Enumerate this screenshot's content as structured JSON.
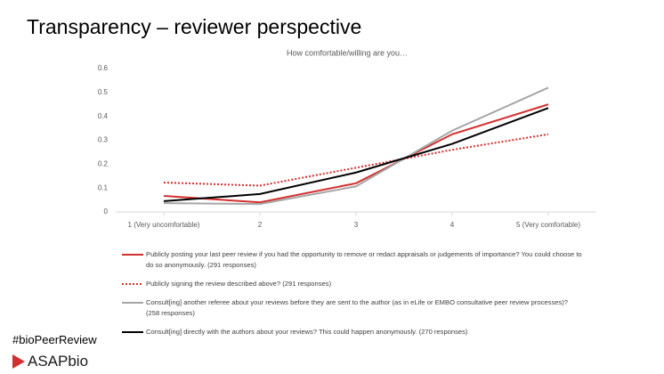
{
  "slide_title": "Transparency – reviewer perspective",
  "chart_data": {
    "type": "line",
    "title": "How comfortable/willing are you…",
    "categories": [
      "1 (Very uncomfortable)",
      "2",
      "3",
      "4",
      "5 (Very comfortable)"
    ],
    "ylim": [
      0,
      0.6
    ],
    "yticks": [
      0,
      0.1,
      0.2,
      0.3,
      0.4,
      0.5,
      0.6
    ],
    "series": [
      {
        "name": "Publicly posting your last peer review if you had the opportunity to remove or redact appraisals or judgements of importance? You could choose to do so anonymously. (291 responses)",
        "color": "#d32f2f",
        "line_style": "solid",
        "values": [
          0.067,
          0.04,
          0.12,
          0.325,
          0.45
        ]
      },
      {
        "name": "Publicly signing the review described above?  (291 responses)",
        "color": "#d32f2f",
        "line_style": "dotted",
        "values": [
          0.123,
          0.11,
          0.185,
          0.26,
          0.325
        ]
      },
      {
        "name": "Consult[ing] another referee about your reviews before they are sent to the author (as in eLife or EMBO consultative peer review processes)? (258 responses)",
        "color": "#a6a6a6",
        "line_style": "solid",
        "values": [
          0.037,
          0.033,
          0.107,
          0.34,
          0.52
        ]
      },
      {
        "name": "Consult[ing] directly with the authors about your reviews? This could happen anonymously.  (270 responses)",
        "color": "#000000",
        "line_style": "solid",
        "values": [
          0.045,
          0.075,
          0.165,
          0.285,
          0.435
        ]
      }
    ]
  },
  "footer": {
    "hashtag": "#bioPeerReview",
    "logo": "ASAPbio"
  }
}
